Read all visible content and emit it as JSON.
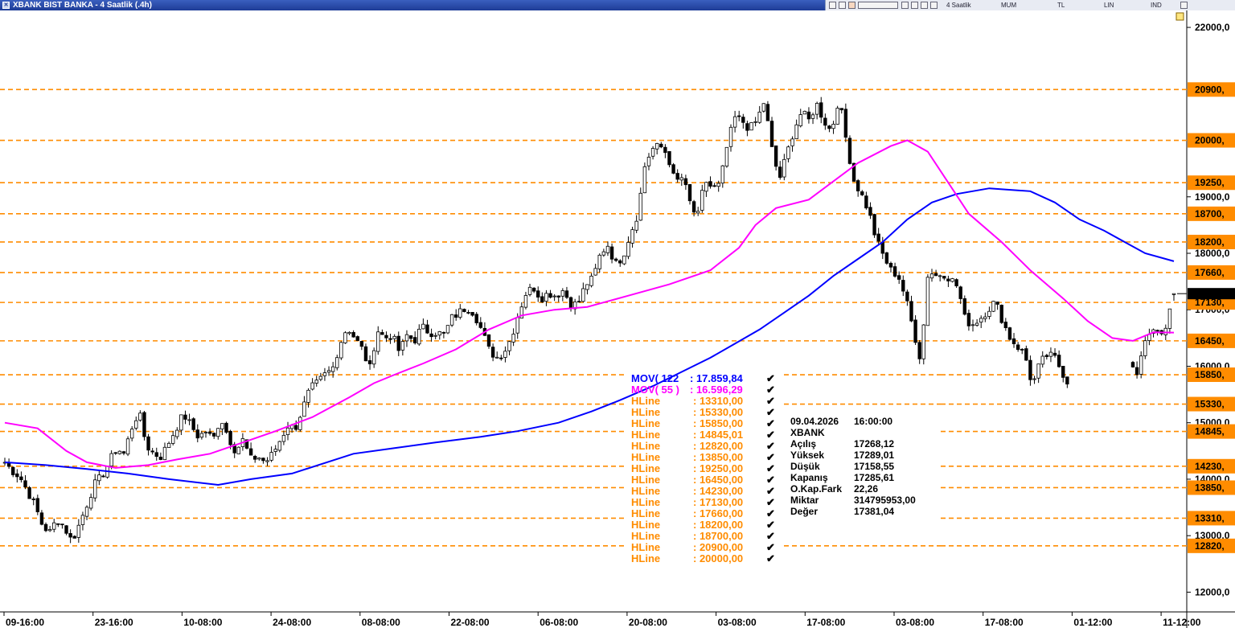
{
  "window": {
    "title": "XBANK BIST BANKA - 4 Saatlik (.4h)"
  },
  "toolbar": {
    "period_label": "4 Saatlik",
    "chart_type_label": "MUM",
    "currency_label": "TL",
    "scale_label": "LIN",
    "indicator_label": "IND"
  },
  "colors": {
    "candle": "#000000",
    "hline": "#ff8c00",
    "mov122": "#0000ff",
    "mov55": "#ff00ff",
    "tag_bg": "#ff8c00",
    "price_tag_bg": "#000000"
  },
  "chart_data": {
    "type": "candlestick",
    "symbol": "XBANK",
    "interval": "4 Saatlik",
    "ylim": [
      11650,
      22300
    ],
    "yticks": [
      "22000,0",
      "19000,0",
      "18000,0",
      "17000,0",
      "16000,0",
      "15000,0",
      "14000,0",
      "13000,0",
      "12000,0"
    ],
    "xticks": [
      "09-16:00",
      "23-16:00",
      "10-08:00",
      "24-08:00",
      "08-08:00",
      "22-08:00",
      "06-08:00",
      "20-08:00",
      "03-08:00",
      "17-08:00",
      "03-08:00",
      "17-08:00",
      "01-12:00",
      "11-12:00"
    ],
    "close_path": [
      14300,
      14150,
      14050,
      13800,
      13550,
      13200,
      13050,
      13300,
      13150,
      12900,
      13200,
      13550,
      13900,
      14050,
      14300,
      14550,
      14450,
      14900,
      15200,
      14600,
      14450,
      14400,
      14650,
      14900,
      15150,
      14950,
      14750,
      14850,
      14700,
      15100,
      14750,
      14500,
      14700,
      14350,
      14400,
      14300,
      14450,
      14700,
      14950,
      14900,
      15250,
      15600,
      15700,
      15850,
      15950,
      16400,
      16700,
      16500,
      16300,
      15950,
      16650,
      16500,
      16550,
      16250,
      16550,
      16450,
      16700,
      16600,
      16600,
      16550,
      16850,
      16950,
      17050,
      16950,
      16650,
      16300,
      16150,
      16250,
      16500,
      16950,
      17300,
      17400,
      17200,
      17300,
      17250,
      17350,
      17100,
      17100,
      17450,
      17550,
      18000,
      18150,
      17800,
      17950,
      18350,
      18700,
      19600,
      19850,
      19900,
      19750,
      19250,
      19350,
      18900,
      18600,
      19300,
      19150,
      19200,
      19900,
      20400,
      20350,
      20200,
      20350,
      20700,
      19850,
      19300,
      19750,
      20200,
      20500,
      20350,
      20650,
      20350,
      20150,
      20750,
      20000,
      19300,
      19050,
      18750,
      18250,
      17950,
      17700,
      17600,
      17200,
      16650,
      16100,
      17700,
      17600,
      17650,
      17550,
      17400,
      16800,
      16750,
      16850,
      17000,
      17150,
      16800,
      16500,
      16350,
      16200,
      15650,
      16050,
      16200,
      16150,
      15900,
      15650,
      15450,
      15550,
      15600,
      15700,
      15800,
      15950,
      16050,
      16150,
      15750,
      16450,
      16650,
      16600,
      16700,
      17285
    ],
    "ohlc_last": {
      "open": 17268.12,
      "high": 17289.01,
      "low": 17158.55,
      "close": 17285.61
    },
    "series": [
      {
        "name": "MOV( 122",
        "value": "17.859,84",
        "color": "#0000ff",
        "path": [
          [
            0,
            14300
          ],
          [
            10,
            14250
          ],
          [
            20,
            14180
          ],
          [
            30,
            14100
          ],
          [
            40,
            14000
          ],
          [
            52,
            13900
          ],
          [
            60,
            14000
          ],
          [
            70,
            14100
          ],
          [
            85,
            14450
          ],
          [
            95,
            14550
          ],
          [
            105,
            14650
          ],
          [
            116,
            14750
          ],
          [
            125,
            14850
          ],
          [
            135,
            15000
          ],
          [
            143,
            15200
          ],
          [
            150,
            15400
          ],
          [
            158,
            15650
          ],
          [
            165,
            15900
          ],
          [
            172,
            16150
          ],
          [
            178,
            16400
          ],
          [
            184,
            16650
          ],
          [
            190,
            16950
          ],
          [
            196,
            17250
          ],
          [
            202,
            17600
          ],
          [
            208,
            17900
          ],
          [
            214,
            18200
          ],
          [
            220,
            18600
          ],
          [
            226,
            18900
          ],
          [
            232,
            19050
          ],
          [
            240,
            19150
          ],
          [
            250,
            19100
          ],
          [
            256,
            18900
          ],
          [
            262,
            18600
          ],
          [
            268,
            18400
          ],
          [
            273,
            18200
          ],
          [
            278,
            18000
          ],
          [
            285,
            17859.84
          ]
        ]
      },
      {
        "name": "MOV( 55 )",
        "value": "16.596,29",
        "color": "#ff00ff",
        "path": [
          [
            0,
            15000
          ],
          [
            8,
            14900
          ],
          [
            15,
            14500
          ],
          [
            20,
            14300
          ],
          [
            27,
            14200
          ],
          [
            35,
            14250
          ],
          [
            42,
            14350
          ],
          [
            50,
            14450
          ],
          [
            60,
            14700
          ],
          [
            66,
            14850
          ],
          [
            75,
            15100
          ],
          [
            84,
            15450
          ],
          [
            90,
            15700
          ],
          [
            95,
            15850
          ],
          [
            102,
            16050
          ],
          [
            110,
            16300
          ],
          [
            118,
            16650
          ],
          [
            126,
            16900
          ],
          [
            134,
            17000
          ],
          [
            142,
            17050
          ],
          [
            152,
            17250
          ],
          [
            162,
            17450
          ],
          [
            172,
            17700
          ],
          [
            179,
            18100
          ],
          [
            183,
            18500
          ],
          [
            188,
            18800
          ],
          [
            196,
            18950
          ],
          [
            208,
            19600
          ],
          [
            216,
            19900
          ],
          [
            220,
            20000
          ],
          [
            225,
            19800
          ],
          [
            230,
            19250
          ],
          [
            235,
            18700
          ],
          [
            243,
            18200
          ],
          [
            250,
            17700
          ],
          [
            258,
            17200
          ],
          [
            264,
            16800
          ],
          [
            270,
            16500
          ],
          [
            275,
            16450
          ],
          [
            280,
            16600
          ],
          [
            285,
            16596.29
          ]
        ]
      }
    ],
    "hlines": [
      13310,
      15330,
      15850,
      14845.01,
      12820,
      13850,
      19250,
      16450,
      14230,
      17130,
      17660,
      18200,
      18700,
      20900,
      20000
    ],
    "hline_labels": [
      "HLine",
      "HLine",
      "HLine",
      "HLine",
      "HLine",
      "HLine",
      "HLine",
      "HLine",
      "HLine",
      "HLine",
      "HLine",
      "HLine",
      "HLine",
      "HLine",
      "HLine"
    ],
    "hline_values": [
      "13310,00",
      "15330,00",
      "15850,00",
      "14845,01",
      "12820,00",
      "13850,00",
      "19250,00",
      "16450,00",
      "14230,00",
      "17130,00",
      "17660,00",
      "18200,00",
      "18700,00",
      "20900,00",
      "20000,00"
    ],
    "tag_values": [
      "20900,",
      "20000,",
      "19250,",
      "18700,",
      "18200,",
      "17660,",
      "17130,",
      "16450,",
      "15850,",
      "15330,",
      "14845,",
      "14230,",
      "13850,",
      "13310,",
      "12820,"
    ],
    "tag_prices": [
      20900,
      20000,
      19250,
      18700,
      18200,
      17660,
      17130,
      16450,
      15850,
      15330,
      14845,
      14230,
      13850,
      13310,
      12820
    ],
    "current_price_label": "17285",
    "current_price": 17285.61,
    "info_box": {
      "date": "09.04.2026",
      "time": "16:00:00",
      "symbol": "XBANK",
      "rows": [
        {
          "label": "Açılış",
          "value": "17268,12"
        },
        {
          "label": "Yüksek",
          "value": "17289,01"
        },
        {
          "label": "Düşük",
          "value": "17158,55"
        },
        {
          "label": "Kapanış",
          "value": "17285,61"
        },
        {
          "label": "O.Kap.Fark",
          "value": "22,26"
        },
        {
          "label": "Miktar",
          "value": "314795953,00"
        },
        {
          "label": "Değer",
          "value": "17381,04"
        }
      ]
    }
  }
}
